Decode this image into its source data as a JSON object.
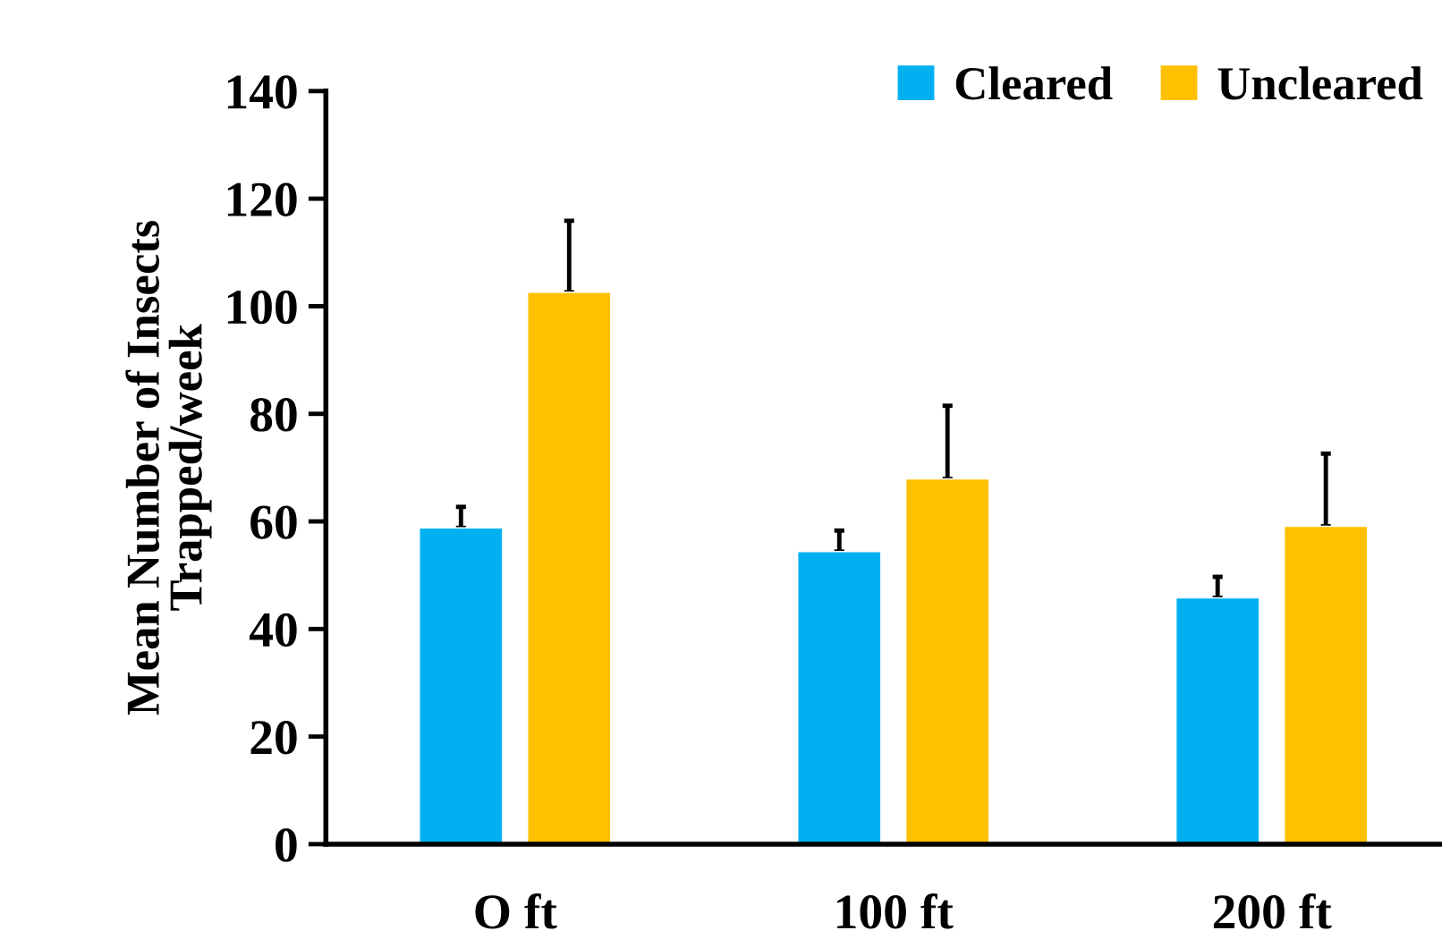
{
  "chart_data": {
    "type": "bar",
    "ylabel": "Mean Number of Insects\nTrapped/week",
    "categories": [
      "O ft",
      "100 ft",
      "200 ft"
    ],
    "series": [
      {
        "name": "Cleared",
        "color": "#00b0f0",
        "values": [
          58.8,
          54.4,
          45.8
        ],
        "errors": [
          [
            58.8,
            62.7
          ],
          [
            54.4,
            58.3
          ],
          [
            45.8,
            49.7
          ]
        ]
      },
      {
        "name": "Uncleared",
        "color": "#ffc000",
        "values": [
          102.6,
          67.9,
          59.1
        ],
        "errors": [
          [
            102.6,
            115.9
          ],
          [
            67.9,
            81.5
          ],
          [
            59.1,
            72.6
          ]
        ]
      }
    ],
    "ylim": [
      0,
      140
    ],
    "yticks": [
      0,
      20,
      40,
      60,
      80,
      100,
      120,
      140
    ],
    "grid": false,
    "legend": "top right"
  }
}
